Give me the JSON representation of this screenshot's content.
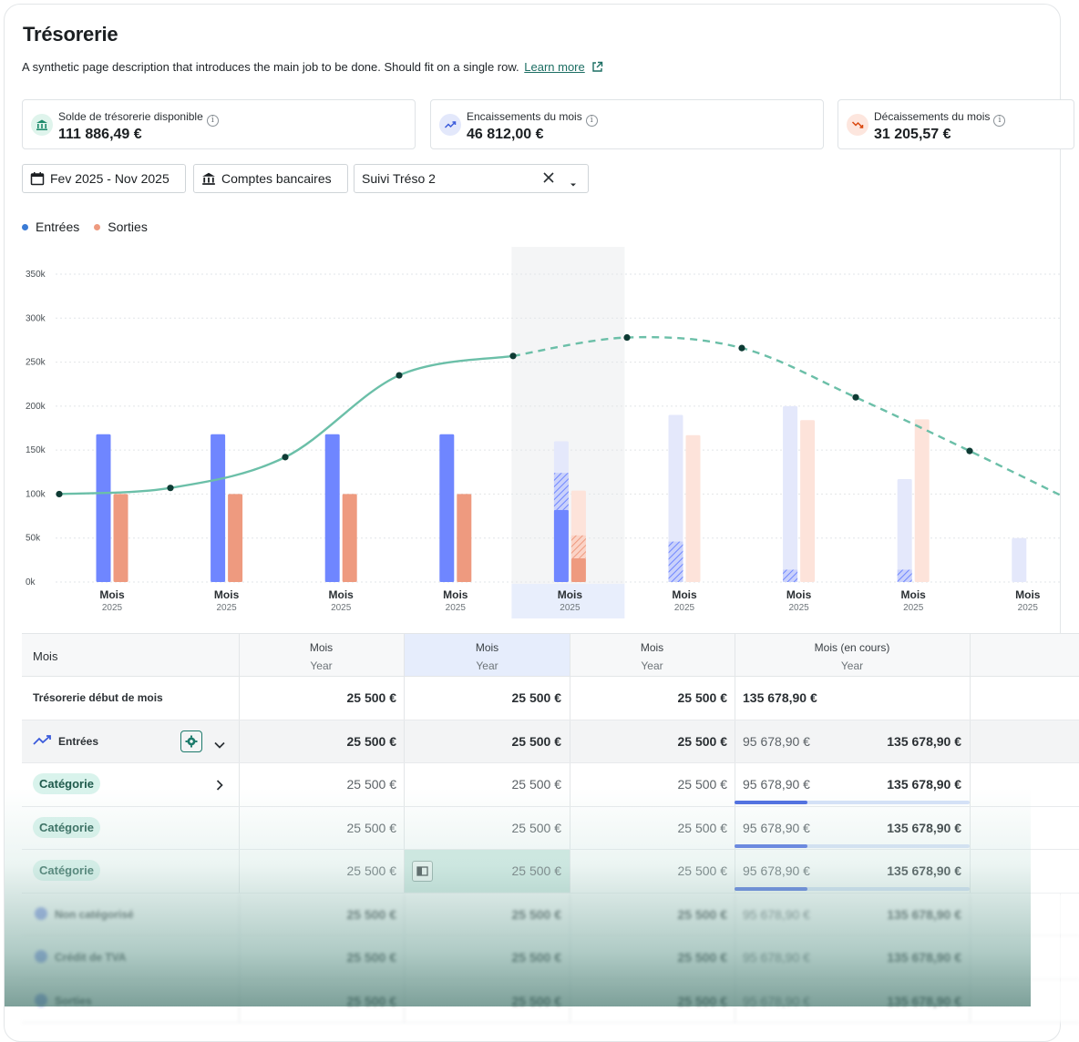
{
  "page": {
    "title": "Trésorerie",
    "description": "A synthetic page description that introduces the main job to be done. Should fit on a single row.",
    "learn_more": "Learn more"
  },
  "kpis": [
    {
      "label": "Solde de trésorerie disponible",
      "value": "111 886,49 €",
      "icon": "bank-icon",
      "color": "#1c8a6b"
    },
    {
      "label": "Encaissements du mois",
      "value": "46 812,00 €",
      "icon": "trend-up-icon",
      "color": "#3b5bdb"
    },
    {
      "label": "Décaissements du mois",
      "value": "31 205,57 €",
      "icon": "trend-down-icon",
      "color": "#d9480f"
    }
  ],
  "filters": {
    "period": "Fev 2025 - Nov 2025",
    "accounts": "Comptes bancaires",
    "view": "Suivi Tréso 2"
  },
  "legend": {
    "in_label": "Entrées",
    "out_label": "Sorties"
  },
  "chart_data": {
    "type": "bar",
    "categories": [
      "Mois 2025",
      "Mois 2025",
      "Mois 2025",
      "Mois 2025",
      "Mois 2025",
      "Mois 2025",
      "Mois 2025",
      "Mois 2025",
      "Mois 2025"
    ],
    "tick_main": [
      "Mois",
      "Mois",
      "Mois",
      "Mois",
      "Mois",
      "Mois",
      "Mois",
      "Mois",
      "Mois"
    ],
    "tick_sub": [
      "2025",
      "2025",
      "2025",
      "2025",
      "2025",
      "2025",
      "2025",
      "2025",
      "2025"
    ],
    "yticks": [
      "350k",
      "300k",
      "250k",
      "200k",
      "150k",
      "100k",
      "50k",
      "0k"
    ],
    "ylim": [
      0,
      350000
    ],
    "current_index": 4,
    "series": [
      {
        "name": "Entrées",
        "realized": [
          168000,
          168000,
          168000,
          168000,
          82000,
          0,
          0,
          0,
          0
        ],
        "hatched": [
          0,
          0,
          0,
          0,
          42000,
          46000,
          14000,
          14000,
          0
        ],
        "forecast": [
          0,
          0,
          0,
          0,
          160000,
          190000,
          200000,
          117000,
          50000
        ]
      },
      {
        "name": "Sorties",
        "realized": [
          100000,
          100000,
          100000,
          100000,
          27000,
          0,
          0,
          0,
          0
        ],
        "hatched": [
          0,
          0,
          0,
          0,
          26000,
          0,
          0,
          0,
          0
        ],
        "forecast": [
          0,
          0,
          0,
          0,
          104000,
          167000,
          184000,
          185000,
          0
        ]
      }
    ],
    "balance_line": [
      100000,
      107000,
      142000,
      235000,
      257000,
      278000,
      266000,
      210000,
      149000
    ],
    "balance_forecast_from": 4,
    "colors": {
      "in": "#6f86ff",
      "in_forecast": "#e4e8fb",
      "out": "#ee9a7f",
      "out_forecast": "#fde3da",
      "line": "#6bbfa8",
      "point": "#0e3b34"
    }
  },
  "table": {
    "first_header": "Mois",
    "columns": [
      {
        "title": "Mois",
        "sub": "Year"
      },
      {
        "title": "Mois",
        "sub": "Year"
      },
      {
        "title": "Mois",
        "sub": "Year"
      },
      {
        "title": "Mois (en cours)",
        "sub": "Year"
      }
    ],
    "rows": [
      {
        "label": "Trésorerie début de mois",
        "kind": "plain",
        "values": [
          "25 500 €",
          "25 500 €",
          "25 500 €"
        ],
        "current_a": "135 678,90 €",
        "current_b": ""
      },
      {
        "label": "Entrées",
        "kind": "group",
        "values": [
          "25 500 €",
          "25 500 €",
          "25 500 €"
        ],
        "current_a": "95 678,90 €",
        "current_b": "135 678,90 €"
      },
      {
        "label": "Catégorie",
        "kind": "category",
        "values": [
          "25 500 €",
          "25 500 €",
          "25 500 €"
        ],
        "current_a": "95 678,90 €",
        "current_b": "135 678,90 €"
      },
      {
        "label": "Catégorie",
        "kind": "category",
        "values": [
          "25 500 €",
          "25 500 €",
          "25 500 €"
        ],
        "current_a": "95 678,90 €",
        "current_b": "135 678,90 €"
      },
      {
        "label": "Catégorie",
        "kind": "category",
        "values": [
          "25 500 €",
          "25 500 €",
          "25 500 €"
        ],
        "current_a": "95 678,90 €",
        "current_b": "135 678,90 €"
      },
      {
        "label": "Non catégorisé",
        "kind": "blur",
        "values": [
          "25 500 €",
          "25 500 €",
          "25 500 €"
        ],
        "current_a": "95 678,90 €",
        "current_b": "135 678,90 €"
      },
      {
        "label": "Crédit de TVA",
        "kind": "blur",
        "values": [
          "25 500 €",
          "25 500 €",
          "25 500 €"
        ],
        "current_a": "95 678,90 €",
        "current_b": "135 678,90 €"
      },
      {
        "label": "Sorties",
        "kind": "blur",
        "values": [
          "25 500 €",
          "25 500 €",
          "25 500 €"
        ],
        "current_a": "95 678,90 €",
        "current_b": "135 678,90 €"
      }
    ]
  }
}
